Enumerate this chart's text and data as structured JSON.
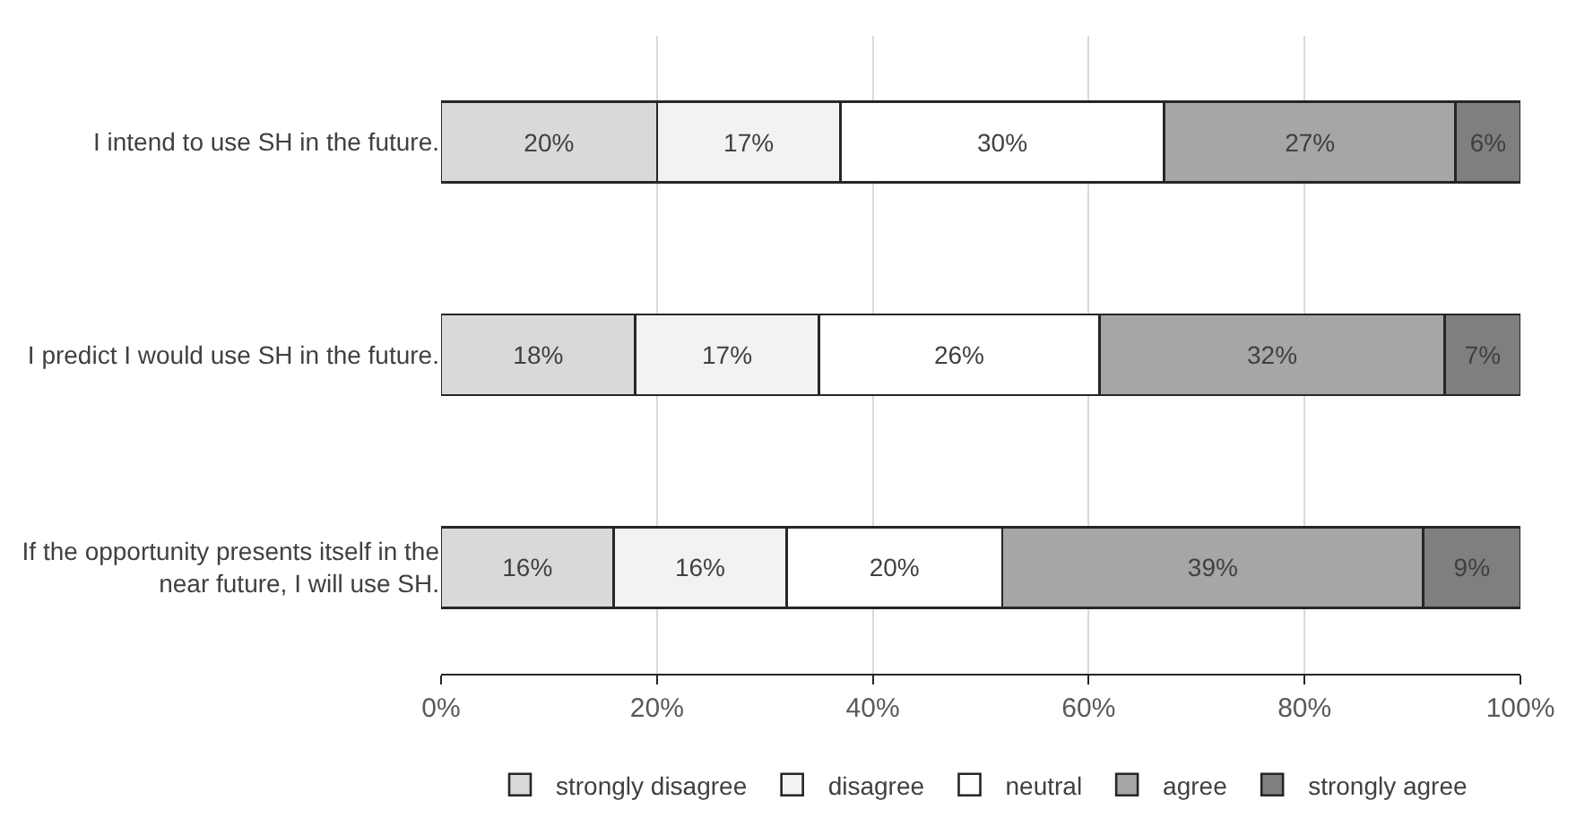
{
  "chart_data": {
    "type": "bar",
    "orientation": "horizontal",
    "stacked": true,
    "categories": [
      "I intend to use SH in the future.",
      "I predict I would use SH in the future.",
      "If the opportunity presents itself in the near future, I will use SH."
    ],
    "series": [
      {
        "name": "strongly disagree",
        "color": "#d9d9d9",
        "values": [
          20,
          18,
          16
        ],
        "value_labels": [
          "20%",
          "18%",
          "16%"
        ]
      },
      {
        "name": "disagree",
        "color": "#f2f2f2",
        "values": [
          17,
          17,
          16
        ],
        "value_labels": [
          "17%",
          "17%",
          "16%"
        ]
      },
      {
        "name": "neutral",
        "color": "#ffffff",
        "values": [
          30,
          26,
          20
        ],
        "value_labels": [
          "30%",
          "26%",
          "20%"
        ]
      },
      {
        "name": "agree",
        "color": "#a6a6a6",
        "values": [
          27,
          32,
          39
        ],
        "value_labels": [
          "27%",
          "32%",
          "39%"
        ]
      },
      {
        "name": "strongly agree",
        "color": "#7f7f7f",
        "values": [
          6,
          7,
          9
        ],
        "value_labels": [
          "6%",
          "7%",
          "9%"
        ]
      }
    ],
    "xlim": [
      0,
      100
    ],
    "xticks": [
      {
        "value": 0,
        "label": "0%"
      },
      {
        "value": 20,
        "label": "20%"
      },
      {
        "value": 40,
        "label": "40%"
      },
      {
        "value": 60,
        "label": "60%"
      },
      {
        "value": 80,
        "label": "80%"
      },
      {
        "value": 100,
        "label": "100%"
      }
    ],
    "grid": "x",
    "legend": "bottom"
  }
}
